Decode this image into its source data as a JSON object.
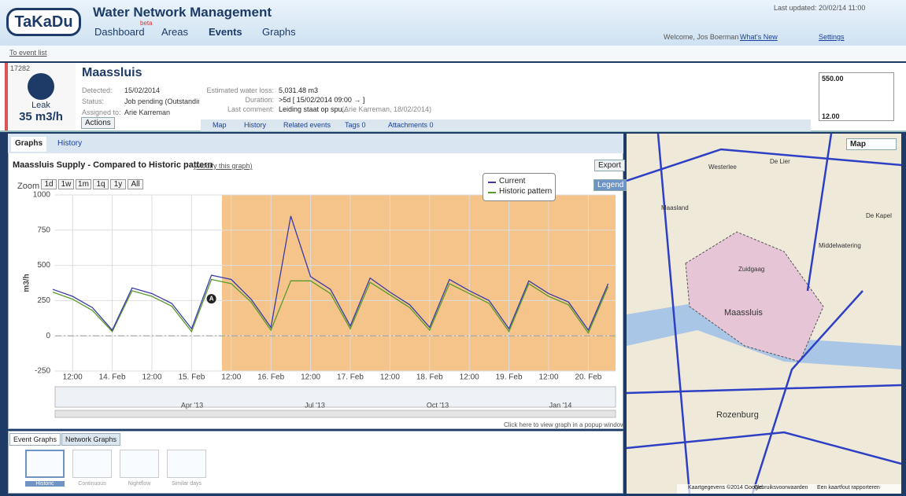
{
  "header": {
    "logo": "TaKaDu",
    "title": "Water Network Management",
    "nav": [
      "Dashboard",
      "Areas",
      "Events",
      "Graphs"
    ],
    "beta": "beta",
    "last_updated": "Last updated: 20/02/14 11:00",
    "welcome": "Welcome, Jos Boerman",
    "links": [
      "What's New",
      "Settings"
    ]
  },
  "breadcrumb": "To event list",
  "event": {
    "id": "17282",
    "kind": "Leak",
    "rate": "35 m3/h",
    "name": "Maassluis",
    "fields_left": [
      [
        "Detected:",
        "15/02/2014"
      ],
      [
        "Status:",
        "Job pending (Outstanding wo..."
      ],
      [
        "Assigned to:",
        "Arie Karreman"
      ]
    ],
    "fields_right": [
      [
        "Estimated water loss:",
        "5,031.48 m3"
      ],
      [
        "Duration:",
        ">5d [ 15/02/2014 09:00 → ]"
      ],
      [
        "Last comment:",
        "Leiding staat op spu..."
      ]
    ],
    "comment_author": "(Arie Karreman, 18/02/2014)",
    "actions": "Actions",
    "tabs": [
      "Map",
      "History",
      "Related events",
      "Tags 0",
      "Attachments 0"
    ],
    "thumb_labels": [
      "550.00",
      "12.00"
    ]
  },
  "panel_tabs": [
    "Graphs",
    "History"
  ],
  "graph": {
    "title": "Maassluis Supply - Compared to Historic pattern",
    "modify": "(Modify this graph)",
    "export": "Export",
    "zoom_label": "Zoom",
    "zoom": [
      "1d",
      "1w",
      "1m",
      "1q",
      "1y",
      "All"
    ],
    "legend_button": "Legend",
    "popup": "Click here to view graph in a popup window",
    "navigator": [
      "Apr '13",
      "Jul '13",
      "Oct '13",
      "Jan '14"
    ]
  },
  "chart_data": {
    "type": "line",
    "y_label": "m3/h",
    "categories": [
      null,
      "12:00",
      null,
      "14. Feb",
      null,
      "12:00",
      null,
      "15. Feb",
      null,
      "12:00",
      null,
      "16. Feb",
      null,
      "12:00",
      null,
      "17. Feb",
      null,
      "12:00",
      null,
      "18. Feb",
      null,
      "12:00",
      null,
      "19. Feb",
      null,
      "12:00",
      null,
      "20. Feb",
      null
    ],
    "series": [
      {
        "name": "Current",
        "color": "#3a3aa8",
        "values": [
          330,
          280,
          200,
          40,
          340,
          300,
          230,
          50,
          430,
          400,
          260,
          60,
          850,
          420,
          330,
          70,
          410,
          310,
          220,
          60,
          400,
          320,
          250,
          50,
          390,
          300,
          240,
          40,
          370
        ]
      },
      {
        "name": "Historic pattern",
        "color": "#5a9a2a",
        "values": [
          310,
          260,
          180,
          30,
          320,
          280,
          210,
          30,
          400,
          370,
          240,
          40,
          390,
          390,
          300,
          50,
          380,
          290,
          200,
          40,
          370,
          300,
          230,
          30,
          370,
          280,
          220,
          20,
          350
        ]
      }
    ],
    "ylim": [
      -250,
      1000
    ],
    "yticks": [
      -250,
      0,
      250,
      500,
      750,
      1000
    ],
    "grid": true,
    "annotations": [
      "A",
      "#"
    ]
  },
  "bottom": {
    "tabs": [
      "Event Graphs",
      "Network Graphs"
    ],
    "thumbs": [
      "Historic",
      "Continuous",
      "Nightflow",
      "Similar days"
    ]
  },
  "map": {
    "type_button": "Map",
    "labels": [
      "Maassluis",
      "Rozenburg",
      "Maasland",
      "Zuidgaag",
      "Westerlee",
      "De Lier",
      "Middelwatering",
      "De Kapel"
    ],
    "footer": [
      "Kaartgegevens ©2014 Google",
      "Gebruiksvoorwaarden",
      "Een kaartfout rapporteren"
    ]
  }
}
